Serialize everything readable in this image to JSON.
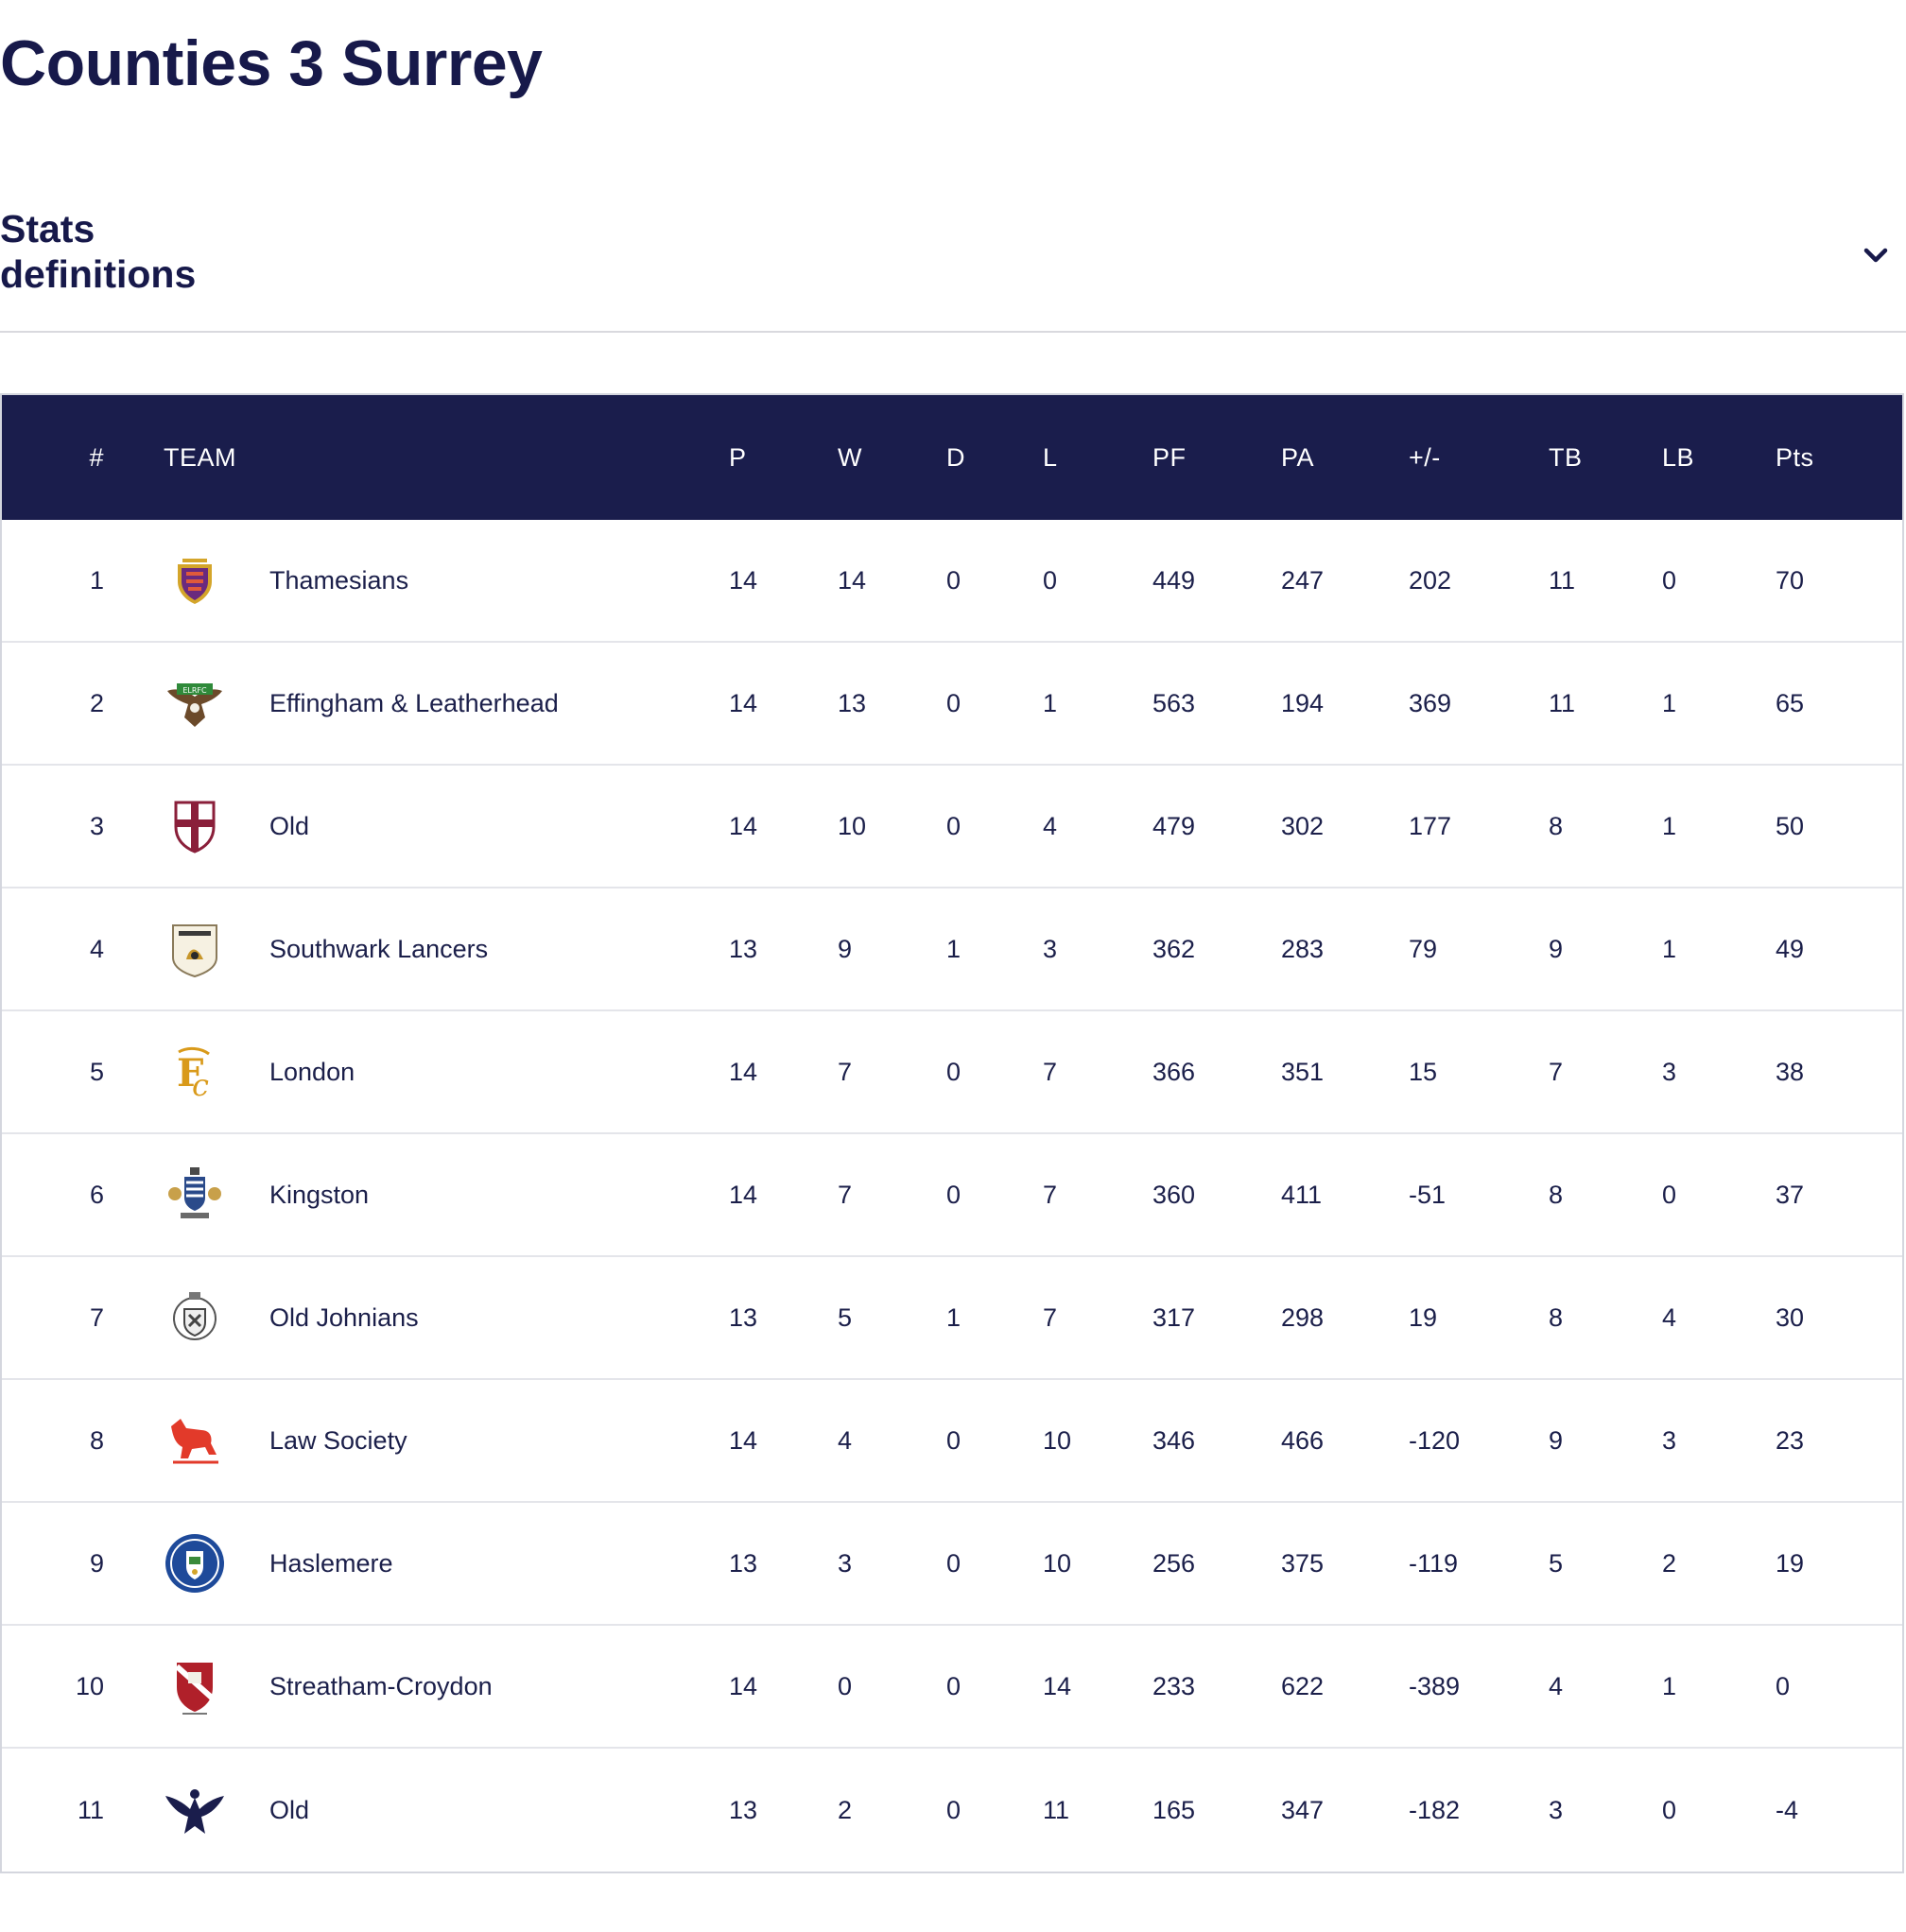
{
  "page": {
    "title": "Counties 3 Surrey"
  },
  "stats_definitions": {
    "label": "Stats definitions",
    "icon": "chevron-down-icon"
  },
  "table": {
    "columns": {
      "rank": "#",
      "team": "TEAM",
      "p": "P",
      "w": "W",
      "d": "D",
      "l": "L",
      "pf": "PF",
      "pa": "PA",
      "diff": "+/-",
      "tb": "TB",
      "lb": "LB",
      "pts": "Pts"
    },
    "rows": [
      {
        "rank": "1",
        "logo": "thamesians-crest-icon",
        "team": "Thamesians",
        "p": "14",
        "w": "14",
        "d": "0",
        "l": "0",
        "pf": "449",
        "pa": "247",
        "diff": "202",
        "tb": "11",
        "lb": "0",
        "pts": "70"
      },
      {
        "rank": "2",
        "logo": "effingham-eagle-icon",
        "team": "Effingham & Leatherhead",
        "p": "14",
        "w": "13",
        "d": "0",
        "l": "1",
        "pf": "563",
        "pa": "194",
        "diff": "369",
        "tb": "11",
        "lb": "1",
        "pts": "65"
      },
      {
        "rank": "3",
        "logo": "cross-shield-icon",
        "team": "Old",
        "p": "14",
        "w": "10",
        "d": "0",
        "l": "4",
        "pf": "479",
        "pa": "302",
        "diff": "177",
        "tb": "8",
        "lb": "1",
        "pts": "50"
      },
      {
        "rank": "4",
        "logo": "southwark-lancers-badge-icon",
        "team": "Southwark Lancers",
        "p": "13",
        "w": "9",
        "d": "1",
        "l": "3",
        "pf": "362",
        "pa": "283",
        "diff": "79",
        "tb": "9",
        "lb": "1",
        "pts": "49"
      },
      {
        "rank": "5",
        "logo": "london-monogram-icon",
        "team": "London",
        "p": "14",
        "w": "7",
        "d": "0",
        "l": "7",
        "pf": "366",
        "pa": "351",
        "diff": "15",
        "tb": "7",
        "lb": "3",
        "pts": "38"
      },
      {
        "rank": "6",
        "logo": "kingston-coat-of-arms-icon",
        "team": "Kingston",
        "p": "14",
        "w": "7",
        "d": "0",
        "l": "7",
        "pf": "360",
        "pa": "411",
        "diff": "-51",
        "tb": "8",
        "lb": "0",
        "pts": "37"
      },
      {
        "rank": "7",
        "logo": "old-johnians-crest-icon",
        "team": "Old Johnians",
        "p": "13",
        "w": "5",
        "d": "1",
        "l": "7",
        "pf": "317",
        "pa": "298",
        "diff": "19",
        "tb": "8",
        "lb": "4",
        "pts": "30"
      },
      {
        "rank": "8",
        "logo": "red-horse-icon",
        "team": "Law Society",
        "p": "14",
        "w": "4",
        "d": "0",
        "l": "10",
        "pf": "346",
        "pa": "466",
        "diff": "-120",
        "tb": "9",
        "lb": "3",
        "pts": "23"
      },
      {
        "rank": "9",
        "logo": "haslemere-roundel-icon",
        "team": "Haslemere",
        "p": "13",
        "w": "3",
        "d": "0",
        "l": "10",
        "pf": "256",
        "pa": "375",
        "diff": "-119",
        "tb": "5",
        "lb": "2",
        "pts": "19"
      },
      {
        "rank": "10",
        "logo": "streatham-croydon-shield-icon",
        "team": "Streatham-Croydon",
        "p": "14",
        "w": "0",
        "d": "0",
        "l": "14",
        "pf": "233",
        "pa": "622",
        "diff": "-389",
        "tb": "4",
        "lb": "1",
        "pts": "0"
      },
      {
        "rank": "11",
        "logo": "eagle-emblem-icon",
        "team": "Old",
        "p": "13",
        "w": "2",
        "d": "0",
        "l": "11",
        "pf": "165",
        "pa": "347",
        "diff": "-182",
        "tb": "3",
        "lb": "0",
        "pts": "-4"
      }
    ]
  },
  "colors": {
    "navy": "#1a1d4c",
    "text": "#1b1f4a",
    "divider": "#e4e5ea"
  }
}
